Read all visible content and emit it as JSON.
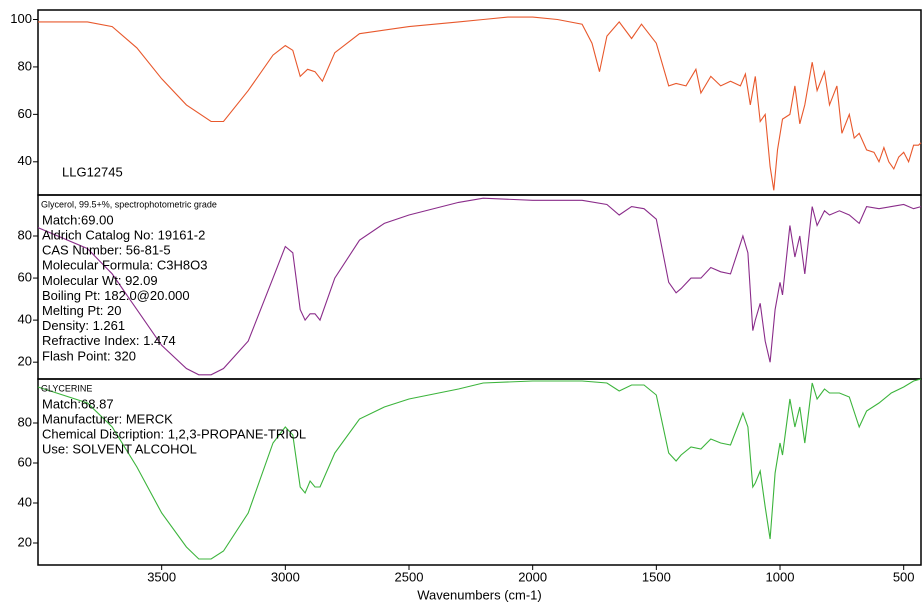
{
  "chart_data": [
    {
      "type": "line",
      "title": "LLG12745",
      "color": "#e8582c",
      "xlim": [
        4000,
        430
      ],
      "ylim": [
        26,
        104
      ],
      "yticks": [
        40,
        60,
        80,
        100
      ],
      "x": [
        4000,
        3800,
        3700,
        3600,
        3500,
        3400,
        3300,
        3250,
        3150,
        3050,
        3000,
        2970,
        2940,
        2910,
        2880,
        2850,
        2800,
        2700,
        2500,
        2300,
        2200,
        2100,
        2000,
        1900,
        1800,
        1760,
        1730,
        1700,
        1650,
        1600,
        1560,
        1500,
        1450,
        1420,
        1380,
        1340,
        1320,
        1280,
        1240,
        1200,
        1160,
        1140,
        1120,
        1100,
        1080,
        1060,
        1040,
        1025,
        1010,
        990,
        960,
        940,
        920,
        900,
        870,
        850,
        820,
        800,
        770,
        750,
        720,
        700,
        680,
        650,
        620,
        600,
        580,
        560,
        540,
        520,
        500,
        480,
        460,
        440,
        430
      ],
      "values": [
        99,
        99,
        97,
        88,
        75,
        64,
        57,
        57,
        70,
        85,
        89,
        87,
        76,
        79,
        78,
        74,
        86,
        94,
        97,
        99,
        100,
        101,
        101,
        100,
        98,
        90,
        78,
        93,
        99,
        92,
        98,
        90,
        72,
        73,
        72,
        79,
        69,
        76,
        72,
        74,
        72,
        77,
        64,
        76,
        57,
        60,
        38,
        28,
        45,
        58,
        60,
        72,
        56,
        64,
        82,
        70,
        78,
        64,
        72,
        52,
        60,
        50,
        52,
        45,
        44,
        40,
        46,
        40,
        37,
        42,
        44,
        40,
        47,
        47,
        48
      ]
    },
    {
      "type": "line",
      "title": "Glycerol, 99.5+%, spectrophotometric grade",
      "color": "#8a2c8a",
      "annotations": [
        "Match:69.00",
        "Aldrich Catalog No:  19161-2",
        "CAS Number:  56-81-5",
        "Molecular Formula:  C3H8O3",
        "Molecular Wt:  92.09",
        "Boiling Pt:  182.0@20.000",
        "Melting Pt:  20",
        "Density:  1.261",
        "Refractive Index:  1.474",
        "Flash Point:  320"
      ],
      "xlim": [
        4000,
        430
      ],
      "ylim": [
        12,
        99.5
      ],
      "yticks": [
        20,
        40,
        60,
        80
      ],
      "x": [
        4000,
        3800,
        3700,
        3600,
        3500,
        3400,
        3350,
        3300,
        3250,
        3150,
        3050,
        3000,
        2970,
        2940,
        2920,
        2900,
        2880,
        2860,
        2800,
        2700,
        2600,
        2500,
        2300,
        2200,
        2000,
        1800,
        1700,
        1650,
        1600,
        1550,
        1500,
        1450,
        1420,
        1400,
        1360,
        1320,
        1280,
        1240,
        1200,
        1150,
        1130,
        1110,
        1100,
        1080,
        1060,
        1040,
        1020,
        1000,
        990,
        960,
        940,
        920,
        900,
        870,
        850,
        820,
        800,
        760,
        720,
        680,
        650,
        600,
        550,
        500,
        460,
        430
      ],
      "values": [
        84,
        74,
        62,
        45,
        28,
        17,
        14,
        14,
        17,
        30,
        60,
        75,
        72,
        45,
        40,
        43,
        43,
        40,
        60,
        78,
        86,
        90,
        96,
        98,
        97,
        97,
        95,
        90,
        94,
        93,
        88,
        58,
        53,
        55,
        60,
        60,
        65,
        63,
        62,
        80,
        72,
        35,
        40,
        48,
        30,
        20,
        45,
        58,
        52,
        85,
        70,
        80,
        62,
        94,
        85,
        92,
        90,
        92,
        90,
        86,
        94,
        93,
        94,
        95,
        93,
        94
      ]
    },
    {
      "type": "line",
      "title": "GLYCERINE",
      "color": "#3cb43c",
      "annotations": [
        "Match:68.87",
        "Manufacturer:  MERCK",
        "Chemical Discription:  1,2,3-PROPANE-TRIOL",
        "Use:  SOLVENT ALCOHOL"
      ],
      "xlabel": "Wavenumbers (cm-1)",
      "xlim": [
        4000,
        430
      ],
      "xticks": [
        3500,
        3000,
        2500,
        2000,
        1500,
        1000,
        500
      ],
      "ylim": [
        9,
        102
      ],
      "yticks": [
        20,
        40,
        60,
        80
      ],
      "x": [
        4000,
        3800,
        3700,
        3600,
        3500,
        3400,
        3350,
        3300,
        3250,
        3150,
        3050,
        3000,
        2970,
        2940,
        2920,
        2900,
        2880,
        2860,
        2800,
        2700,
        2600,
        2500,
        2300,
        2200,
        2000,
        1800,
        1700,
        1650,
        1600,
        1550,
        1500,
        1450,
        1420,
        1400,
        1360,
        1320,
        1280,
        1240,
        1200,
        1150,
        1130,
        1110,
        1100,
        1080,
        1060,
        1040,
        1020,
        1000,
        990,
        960,
        940,
        920,
        900,
        870,
        850,
        820,
        800,
        760,
        720,
        680,
        650,
        600,
        550,
        500,
        460,
        430
      ],
      "values": [
        98,
        90,
        78,
        58,
        35,
        18,
        12,
        12,
        16,
        35,
        70,
        78,
        74,
        48,
        45,
        51,
        48,
        48,
        65,
        82,
        88,
        92,
        97,
        100,
        101,
        101,
        100,
        96,
        99,
        99,
        94,
        65,
        61,
        64,
        68,
        67,
        72,
        70,
        69,
        85,
        78,
        48,
        50,
        56,
        38,
        22,
        55,
        70,
        64,
        92,
        78,
        88,
        70,
        100,
        92,
        97,
        95,
        95,
        93,
        78,
        86,
        90,
        95,
        98,
        101,
        102
      ]
    }
  ]
}
